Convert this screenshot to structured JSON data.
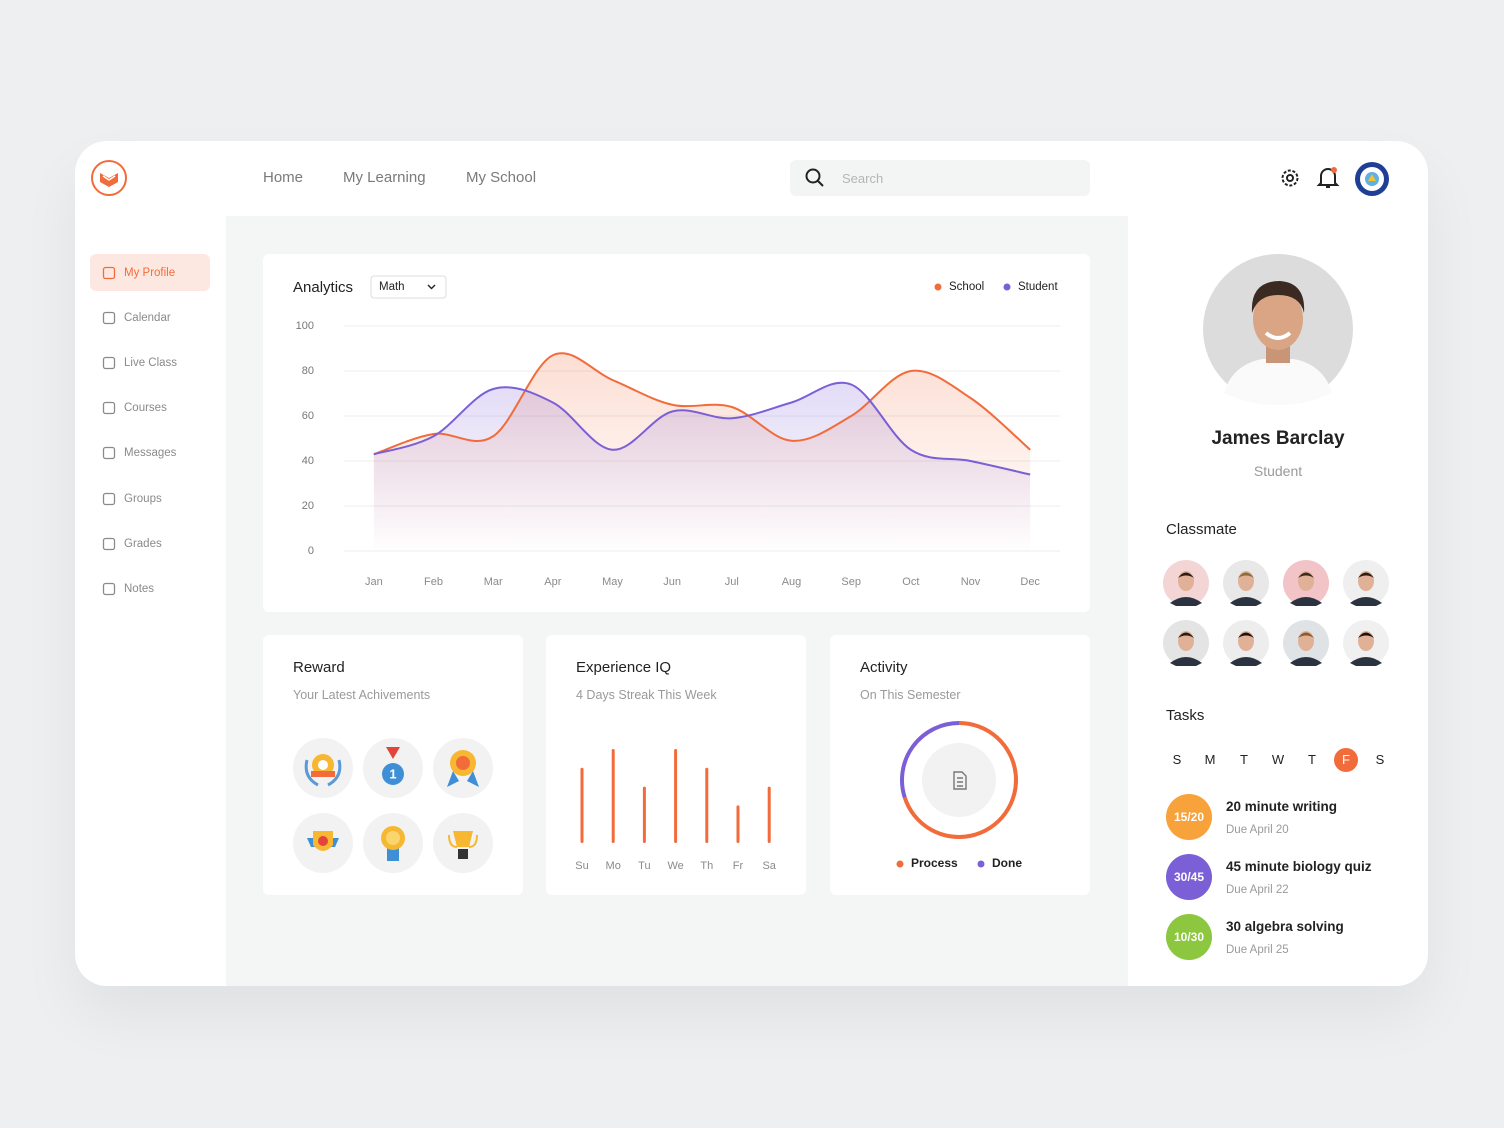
{
  "nav": {
    "links": [
      "Home",
      "My Learning",
      "My School"
    ],
    "search_placeholder": "Search"
  },
  "sidebar": {
    "items": [
      "My Profile",
      "Calendar",
      "Live Class",
      "Courses",
      "Messages",
      "Groups",
      "Grades",
      "Notes"
    ]
  },
  "chart_data": [
    {
      "type": "line",
      "title": "Analytics",
      "dropdown": "Math",
      "categories": [
        "Jan",
        "Feb",
        "Mar",
        "Apr",
        "May",
        "Jun",
        "Jul",
        "Aug",
        "Sep",
        "Oct",
        "Nov",
        "Dec"
      ],
      "series": [
        {
          "name": "School",
          "color": "#f26b3a",
          "values": [
            43,
            52,
            51,
            87,
            76,
            65,
            64,
            49,
            60,
            80,
            68,
            45
          ]
        },
        {
          "name": "Student",
          "color": "#7b5fd6",
          "values": [
            43,
            51,
            72,
            66,
            45,
            62,
            59,
            66,
            74,
            45,
            40,
            34
          ]
        }
      ],
      "ylim": [
        0,
        100
      ],
      "yticks": [
        0,
        20,
        40,
        60,
        80,
        100
      ],
      "grid": true,
      "legend": "top-right"
    },
    {
      "type": "bar",
      "title": "Experience IQ",
      "subtitle": "4 Days Streak This Week",
      "categories": [
        "Su",
        "Mo",
        "Tu",
        "We",
        "Th",
        "Fr",
        "Sa"
      ],
      "values": [
        4,
        5,
        3,
        5,
        4,
        2,
        3
      ],
      "color": "#f26b3a"
    },
    {
      "type": "pie",
      "title": "Activity",
      "subtitle": "On This Semester",
      "categories": [
        "Process",
        "Done"
      ],
      "values": [
        70,
        30
      ],
      "colors": [
        "#f26b3a",
        "#7b5fd6"
      ]
    }
  ],
  "reward": {
    "title": "Reward",
    "subtitle": "Your Latest Achivements"
  },
  "profile": {
    "name": "James Barclay",
    "role": "Student"
  },
  "classmate": {
    "title": "Classmate"
  },
  "tasks": {
    "title": "Tasks",
    "days": [
      "S",
      "M",
      "T",
      "W",
      "T",
      "F",
      "S"
    ],
    "items": [
      {
        "badge": "15/20",
        "title": "20 minute writing",
        "due": "Due April 20",
        "color": "#f7a23b"
      },
      {
        "badge": "30/45",
        "title": "45 minute biology quiz",
        "due": "Due April 22",
        "color": "#7b5fd6"
      },
      {
        "badge": "10/30",
        "title": "30 algebra solving",
        "due": "Due April 25",
        "color": "#8dc63f"
      }
    ]
  }
}
